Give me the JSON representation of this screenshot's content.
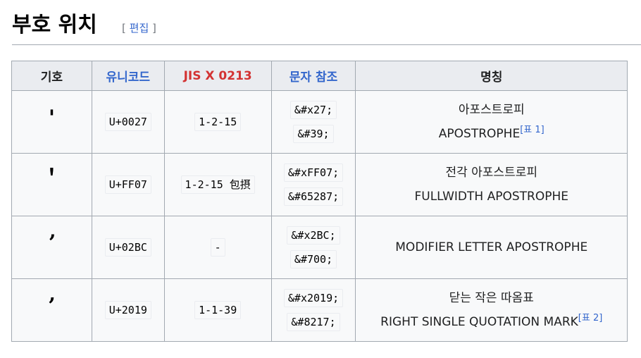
{
  "section": {
    "title": "부호 위치",
    "edit_open": "[",
    "edit_label": "편집",
    "edit_close": "]"
  },
  "table": {
    "headers": [
      "기호",
      "유니코드",
      "JIS X 0213",
      "문자 참조",
      "명칭"
    ],
    "rows": [
      {
        "symbol": "'",
        "unicode": "U+0027",
        "jis": "1-2-15",
        "refs": [
          "&#x27;",
          "&#39;"
        ],
        "names": [
          "아포스트로피",
          "APOSTROPHE"
        ],
        "note": "[표 1]"
      },
      {
        "symbol": "＇",
        "unicode": "U+FF07",
        "jis": "1-2-15 包摂",
        "refs": [
          "&#xFF07;",
          "&#65287;"
        ],
        "names": [
          "전각 아포스트로피",
          "FULLWIDTH APOSTROPHE"
        ],
        "note": ""
      },
      {
        "symbol": "ʼ",
        "unicode": "U+02BC",
        "jis": "-",
        "refs": [
          "&#x2BC;",
          "&#700;"
        ],
        "names": [
          "MODIFIER LETTER APOSTROPHE"
        ],
        "note": ""
      },
      {
        "symbol": "’",
        "unicode": "U+2019",
        "jis": "1-1-39",
        "refs": [
          "&#x2019;",
          "&#8217;"
        ],
        "names": [
          "닫는 작은 따옴표",
          "RIGHT SINGLE QUOTATION MARK"
        ],
        "note": "[표 2]"
      }
    ]
  }
}
